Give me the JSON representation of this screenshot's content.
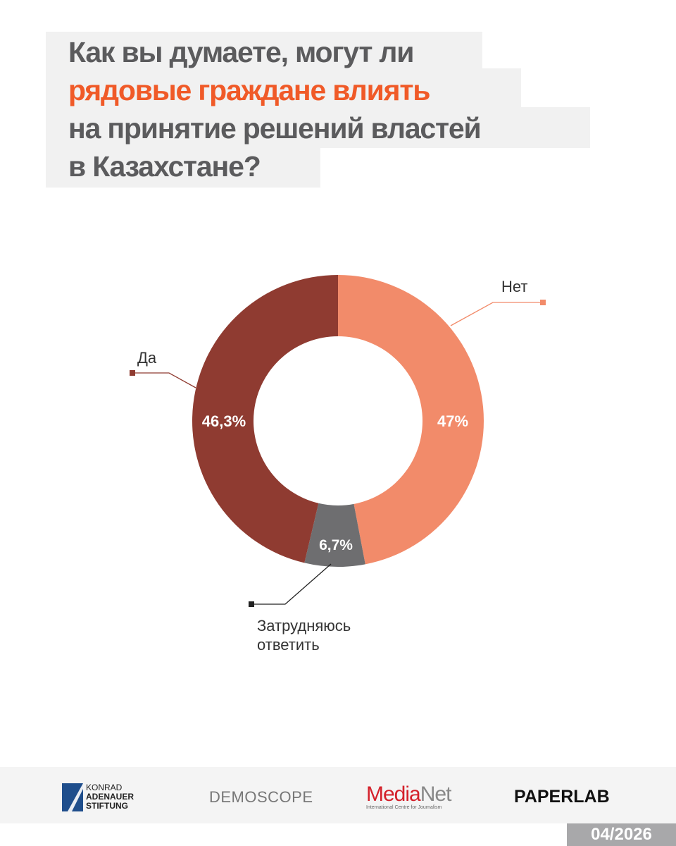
{
  "title": {
    "line1": "Как вы думаете, могут ли",
    "line2": "рядовые граждане влиять",
    "line3": "на принятие решений властей",
    "line4": "в Казахстане?",
    "highlight_color": "#f05a28",
    "text_color": "#5b5b5d"
  },
  "chart_data": {
    "type": "pie",
    "donut": true,
    "slices": [
      {
        "label": "Нет",
        "value": 47,
        "value_label": "47%",
        "color": "#f28b6a"
      },
      {
        "label": "Затрудняюсь ответить",
        "label_lines": [
          "Затрудняюсь",
          "ответить"
        ],
        "value": 6.7,
        "value_label": "6,7%",
        "color": "#6e6e70"
      },
      {
        "label": "Да",
        "value": 46.3,
        "value_label": "46,3%",
        "color": "#8f3b31"
      }
    ]
  },
  "footer": {
    "logos": {
      "kas": [
        "KONRAD",
        "ADENAUER",
        "STIFTUNG"
      ],
      "demoscope": "DEMOSCOPE",
      "medianet": {
        "media": "Media",
        "net": "Net",
        "sub": "International Centre for Journalism"
      },
      "paperlab": "PAPERLAB"
    },
    "date": "04/2026"
  }
}
